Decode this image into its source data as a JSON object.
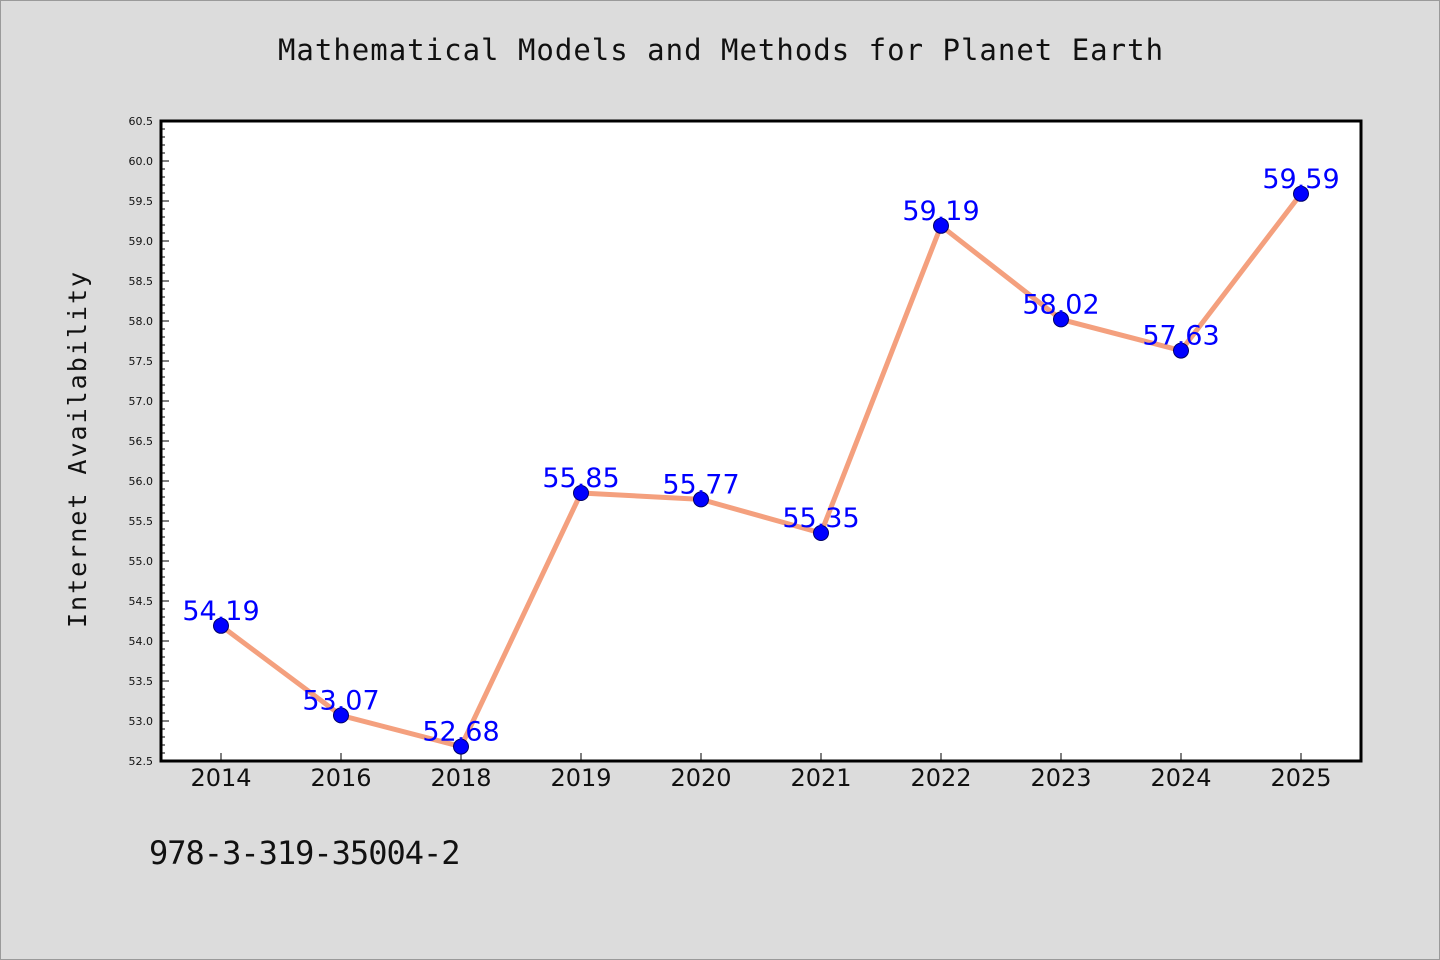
{
  "chart_data": {
    "type": "line",
    "title": "Mathematical Models and Methods for Planet Earth",
    "ylabel": "Internet Availability",
    "xlabel": "",
    "categories": [
      "2014",
      "2016",
      "2018",
      "2019",
      "2020",
      "2021",
      "2022",
      "2023",
      "2024",
      "2025"
    ],
    "series": [
      {
        "values": [
          54.19,
          53.07,
          52.68,
          55.85,
          55.77,
          55.35,
          59.19,
          58.02,
          57.63,
          59.59
        ]
      }
    ],
    "data_labels": [
      "54.19",
      "53.07",
      "52.68",
      "55.85",
      "55.77",
      "55.35",
      "59.19",
      "58.02",
      "57.63",
      "59.59"
    ],
    "ylim": [
      52.5,
      60.5
    ],
    "yticks": [
      "52.5",
      "53.0",
      "53.5",
      "54.0",
      "54.5",
      "55.0",
      "55.5",
      "56.0",
      "56.5",
      "57.0",
      "57.5",
      "58.0",
      "58.5",
      "59.0",
      "59.5",
      "60.0",
      "60.5"
    ],
    "grid": false,
    "legend": "none",
    "colors": {
      "line": "#f4a07e",
      "marker": "#0000ff",
      "marker_edge": "#000066",
      "labels": "#0000ff",
      "background": "#dcdcdc",
      "plot_area": "#ffffff"
    }
  },
  "footer": {
    "identifier": "978-3-319-35004-2"
  }
}
